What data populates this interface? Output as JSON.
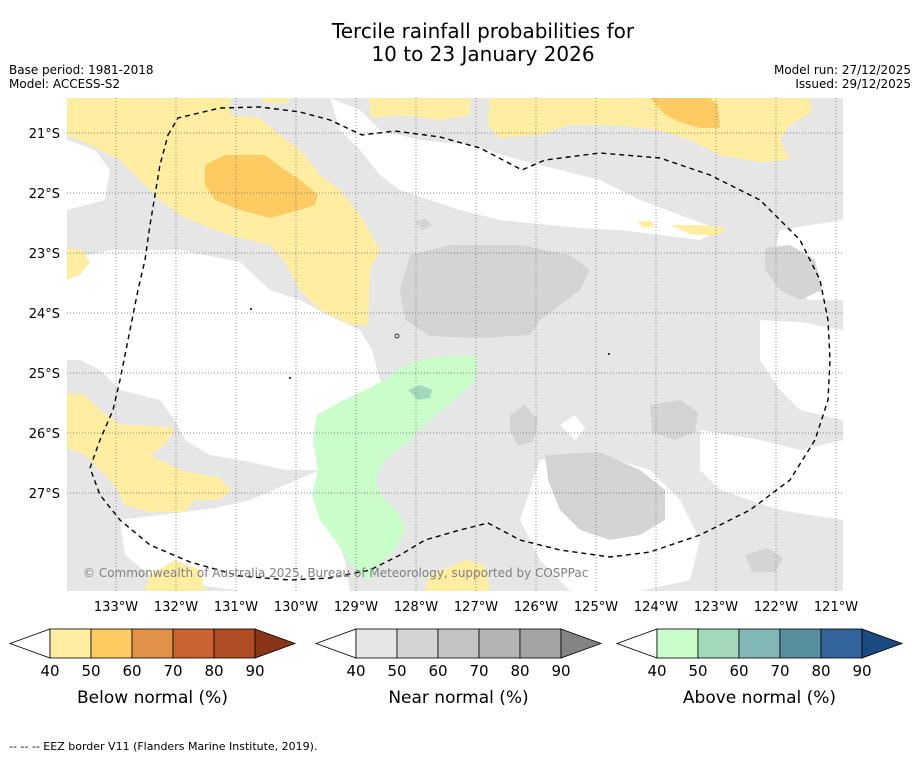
{
  "title_line1": "Tercile rainfall probabilities for",
  "title_line2": "10 to 23 January 2026",
  "base_period": "Base period: 1981-2018",
  "model": "Model: ACCESS-S2",
  "model_run": "Model run: 27/12/2025",
  "issued": "Issued: 29/12/2025",
  "copyright": "© Commonwealth of Australia 2025, Bureau of Meteorology, supported by COSPPac",
  "lat_labels": [
    "21°S",
    "22°S",
    "23°S",
    "24°S",
    "25°S",
    "26°S",
    "27°S"
  ],
  "lon_labels": [
    "133°W",
    "132°W",
    "131°W",
    "130°W",
    "129°W",
    "128°W",
    "127°W",
    "126°W",
    "125°W",
    "124°W",
    "123°W",
    "122°W",
    "121°W"
  ],
  "legends": [
    {
      "title": "Below normal (%)",
      "ticks": [
        "40",
        "50",
        "60",
        "70",
        "80",
        "90"
      ],
      "colors": [
        "#ffffff",
        "#ffeea2",
        "#fecb63",
        "#e09248",
        "#ca6232",
        "#b04d24",
        "#8a3518"
      ]
    },
    {
      "title": "Near normal (%)",
      "ticks": [
        "40",
        "50",
        "60",
        "70",
        "80",
        "90"
      ],
      "colors": [
        "#ffffff",
        "#e6e6e6",
        "#d4d4d4",
        "#c4c4c4",
        "#b4b4b4",
        "#a3a3a3",
        "#848484"
      ]
    },
    {
      "title": "Above normal (%)",
      "ticks": [
        "40",
        "50",
        "60",
        "70",
        "80",
        "90"
      ],
      "colors": [
        "#ffffff",
        "#c9fdca",
        "#a1d9ba",
        "#81b7b5",
        "#588f9f",
        "#33649b",
        "#1a4a80"
      ]
    }
  ],
  "footer": "-- -- -- EEZ border V11 (Flanders Marine Institute, 2019)."
}
